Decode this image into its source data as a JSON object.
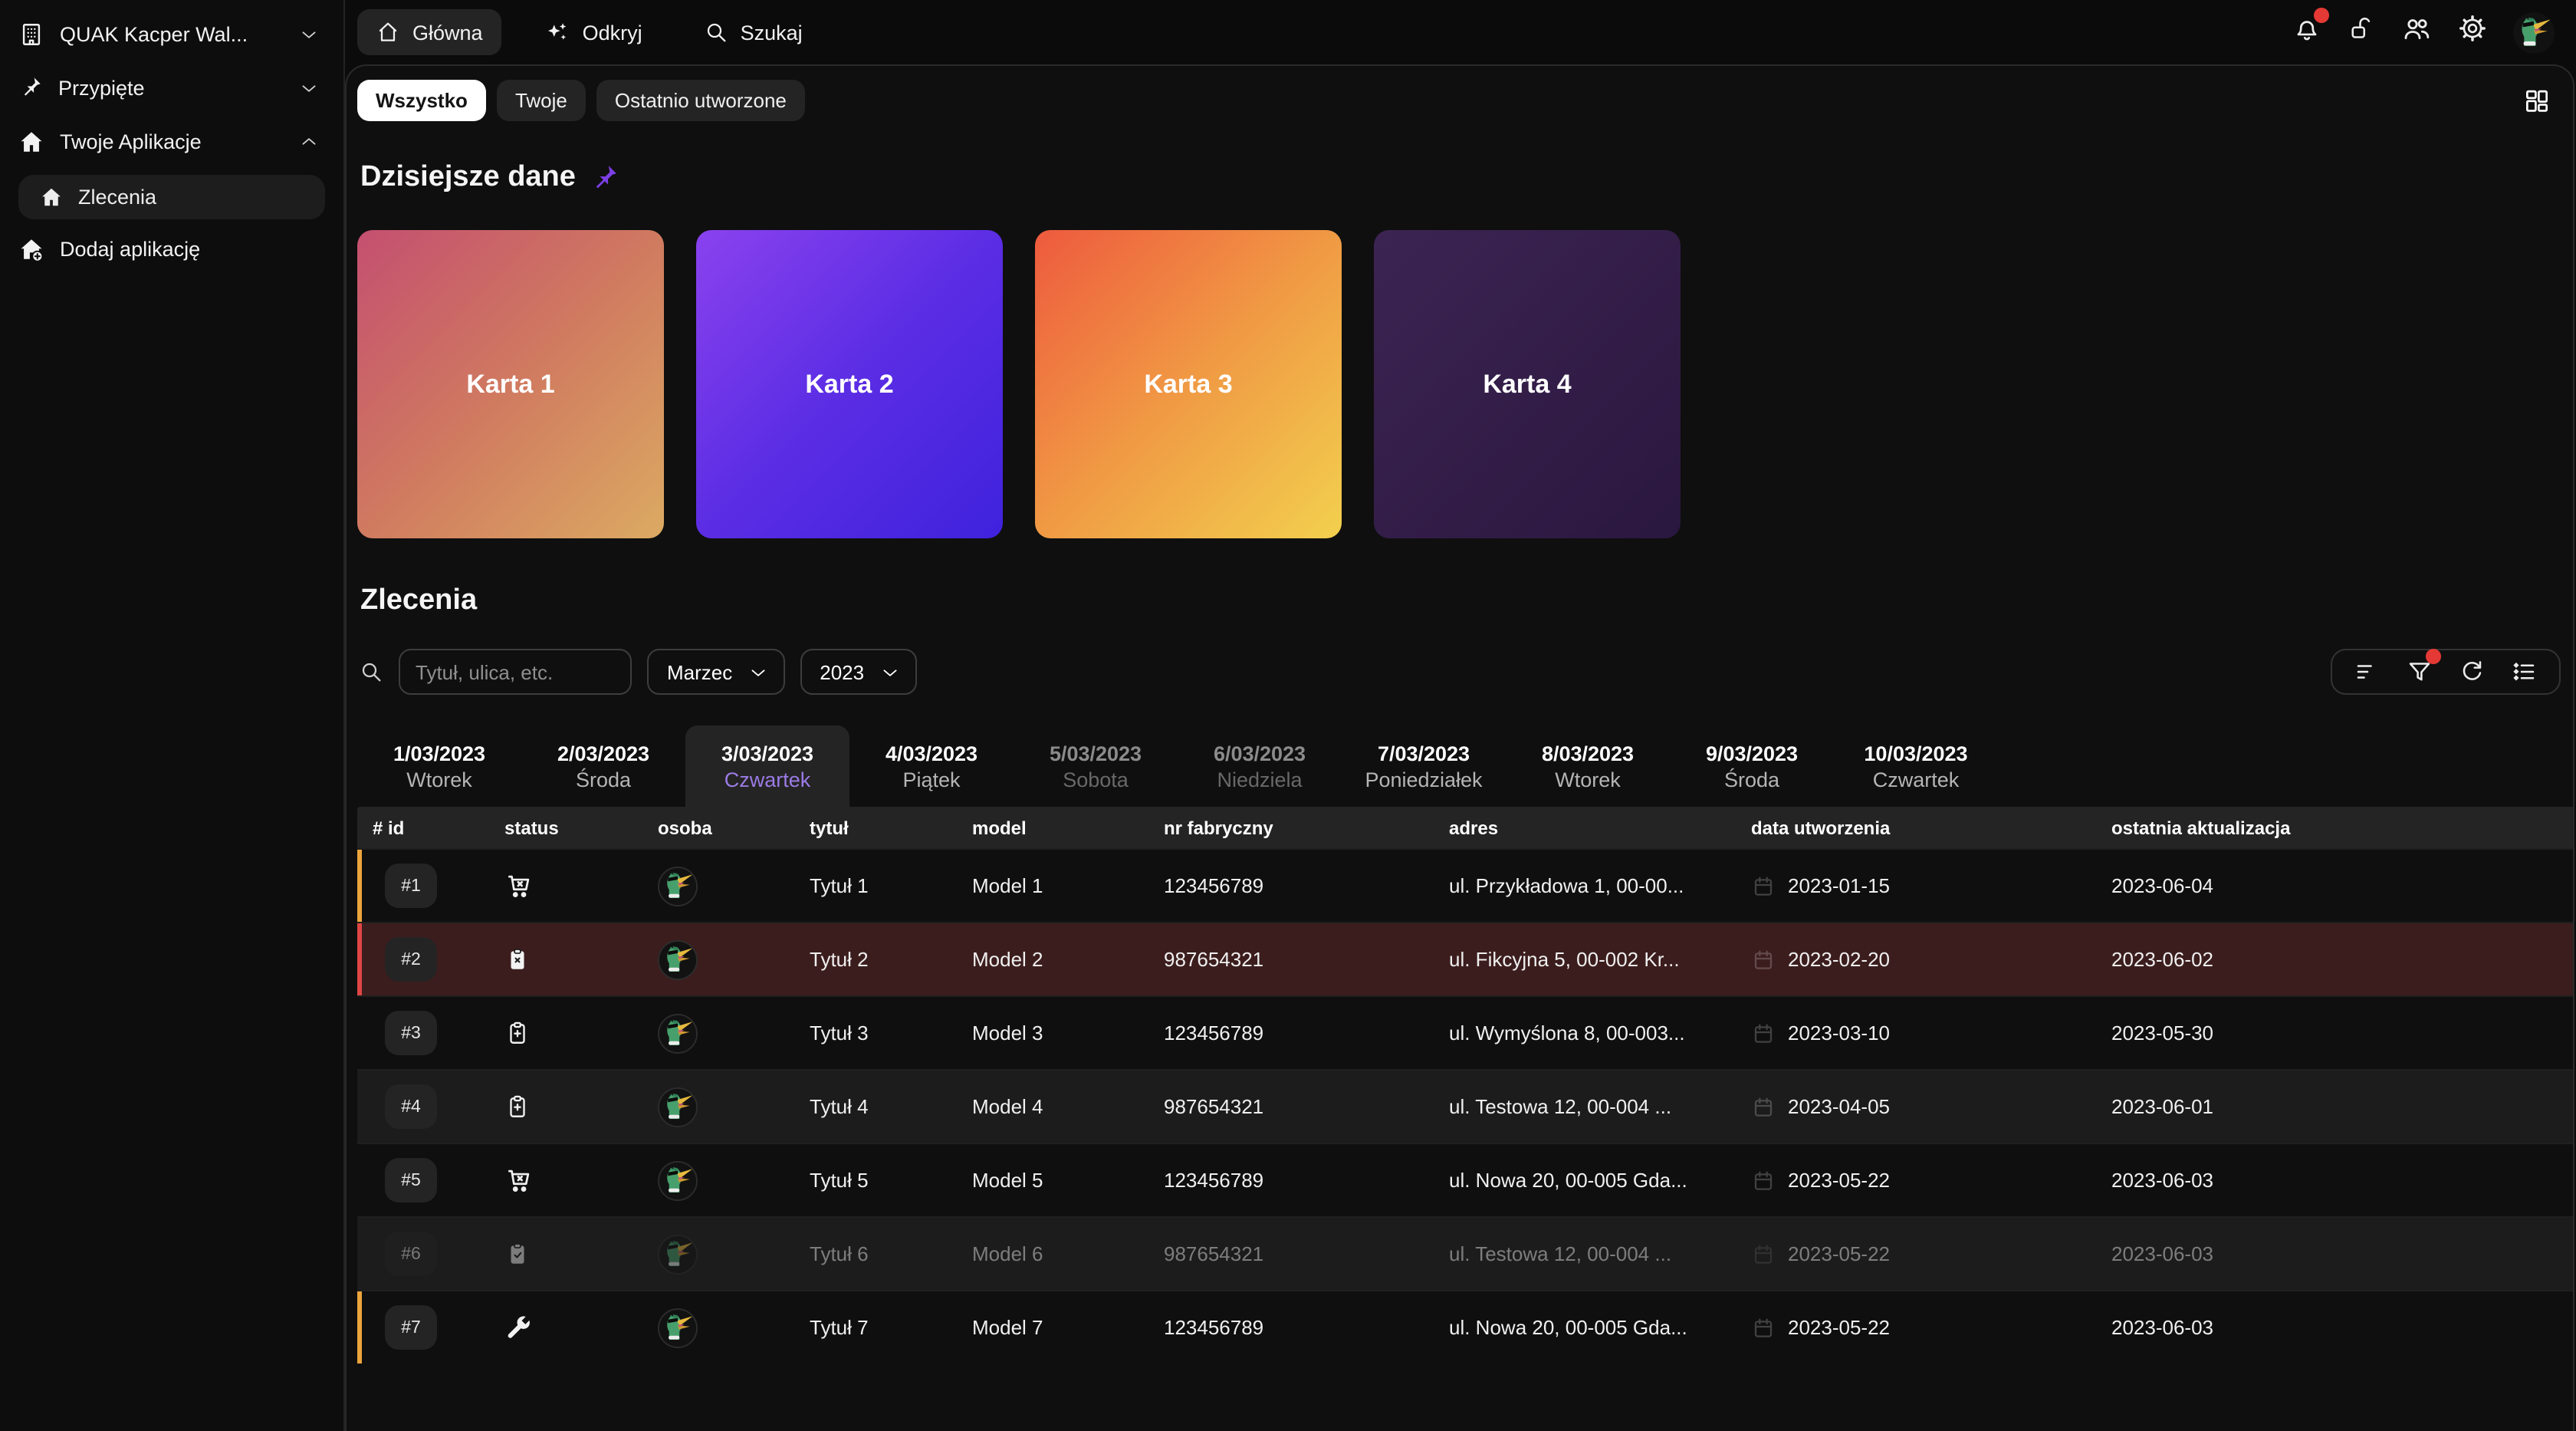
{
  "sidebar": {
    "items": [
      {
        "name": "workspace-switcher",
        "icon": "building-icon",
        "label": "QUAK Kacper Wal...",
        "chevron": "down",
        "type": "section"
      },
      {
        "name": "sidebar-section-pinned",
        "icon": "pin-icon",
        "label": "Przypięte",
        "chevron": "down",
        "type": "section"
      },
      {
        "name": "sidebar-section-your-apps",
        "icon": "house-icon",
        "label": "Twoje Aplikacje",
        "chevron": "up",
        "type": "section"
      },
      {
        "name": "sidebar-item-zlecenia",
        "icon": "home-icon",
        "label": "Zlecenia",
        "type": "active"
      },
      {
        "name": "sidebar-item-add-app",
        "icon": "home-plus-icon",
        "label": "Dodaj aplikację",
        "type": "plain"
      }
    ]
  },
  "topnav": {
    "items": [
      {
        "name": "nav-home",
        "icon": "home-outline-icon",
        "label": "Główna",
        "active": true
      },
      {
        "name": "nav-discover",
        "icon": "sparkles-icon",
        "label": "Odkryj",
        "active": false
      },
      {
        "name": "nav-search",
        "icon": "search-icon",
        "label": "Szukaj",
        "active": false
      }
    ],
    "right_icons": [
      {
        "name": "notifications-button",
        "icon": "bell-icon",
        "badge": true
      },
      {
        "name": "lock-button",
        "icon": "lock-open-icon",
        "badge": false
      },
      {
        "name": "users-button",
        "icon": "users-icon",
        "badge": false
      },
      {
        "name": "settings-button",
        "icon": "gear-icon",
        "badge": false
      }
    ],
    "avatar_icon": "duck-avatar"
  },
  "filters": {
    "chips": [
      {
        "label": "Wszystko",
        "active": true
      },
      {
        "label": "Twoje",
        "active": false
      },
      {
        "label": "Ostatnio utworzone",
        "active": false
      }
    ],
    "layout_button_icon": "grid-layout-icon"
  },
  "today_section": {
    "title": "Dzisiejsze dane",
    "pin_icon": "pin-icon",
    "pin_color": "#7b3fe4",
    "cards": [
      {
        "label": "Karta 1",
        "gradient": [
          "#c44f70",
          "#d07a60",
          "#dcaa62"
        ]
      },
      {
        "label": "Karta 2",
        "gradient": [
          "#8a42ee",
          "#5b2de4",
          "#3f22dd"
        ]
      },
      {
        "label": "Karta 3",
        "gradient": [
          "#ee5a3e",
          "#f09a44",
          "#f2d04e"
        ]
      },
      {
        "label": "Karta 4",
        "gradient": [
          "#3c2452",
          "#2a173f"
        ]
      }
    ]
  },
  "orders_section": {
    "title": "Zlecenia",
    "search_placeholder": "Tytuł, ulica, etc.",
    "month_select": "Marzec",
    "year_select": "2023",
    "toolbar_icons": [
      {
        "name": "sort-button",
        "icon": "sort-icon",
        "badge": false
      },
      {
        "name": "filter-button",
        "icon": "filter-icon",
        "badge": true
      },
      {
        "name": "refresh-button",
        "icon": "refresh-icon",
        "badge": false
      },
      {
        "name": "task-list-button",
        "icon": "task-list-icon",
        "badge": false
      }
    ],
    "day_tabs": [
      {
        "date": "1/03/2023",
        "weekday": "Wtorek",
        "state": "normal"
      },
      {
        "date": "2/03/2023",
        "weekday": "Środa",
        "state": "normal"
      },
      {
        "date": "3/03/2023",
        "weekday": "Czwartek",
        "state": "selected"
      },
      {
        "date": "4/03/2023",
        "weekday": "Piątek",
        "state": "normal"
      },
      {
        "date": "5/03/2023",
        "weekday": "Sobota",
        "state": "disabled"
      },
      {
        "date": "6/03/2023",
        "weekday": "Niedziela",
        "state": "disabled"
      },
      {
        "date": "7/03/2023",
        "weekday": "Poniedziałek",
        "state": "normal"
      },
      {
        "date": "8/03/2023",
        "weekday": "Wtorek",
        "state": "normal"
      },
      {
        "date": "9/03/2023",
        "weekday": "Środa",
        "state": "normal"
      },
      {
        "date": "10/03/2023",
        "weekday": "Czwartek",
        "state": "normal"
      }
    ],
    "table": {
      "columns": [
        "# id",
        "status",
        "osoba",
        "tytuł",
        "model",
        "nr fabryczny",
        "adres",
        "data utworzenia",
        "ostatnia aktualizacja"
      ],
      "calendar_icon": "calendar-icon",
      "accent_colors": {
        "orange": "#eca43c",
        "red": "#e04545"
      },
      "highlight_row_bg": "#3c1d1d",
      "rows": [
        {
          "id": "#1",
          "status_icon": "cart-x-icon",
          "person_icon": "duck-avatar",
          "title": "Tytuł 1",
          "model": "Model 1",
          "serial": "123456789",
          "address": "ul. Przykładowa 1, 00-00...",
          "created": "2023-01-15",
          "updated": "2023-06-04",
          "accent": "orange",
          "alt": false,
          "dimmed": false,
          "highlight": false
        },
        {
          "id": "#2",
          "status_icon": "clipboard-x-icon",
          "person_icon": "duck-avatar",
          "title": "Tytuł 2",
          "model": "Model 2",
          "serial": "987654321",
          "address": "ul. Fikcyjna 5, 00-002 Kr...",
          "created": "2023-02-20",
          "updated": "2023-06-02",
          "accent": "red",
          "alt": false,
          "dimmed": false,
          "highlight": true
        },
        {
          "id": "#3",
          "status_icon": "clipboard-plus-icon",
          "person_icon": "duck-avatar",
          "title": "Tytuł 3",
          "model": "Model 3",
          "serial": "123456789",
          "address": "ul. Wymyślona 8, 00-003...",
          "created": "2023-03-10",
          "updated": "2023-05-30",
          "accent": null,
          "alt": false,
          "dimmed": false,
          "highlight": false
        },
        {
          "id": "#4",
          "status_icon": "clipboard-plus-icon",
          "person_icon": "duck-avatar",
          "title": "Tytuł 4",
          "model": "Model 4",
          "serial": "987654321",
          "address": "ul. Testowa 12, 00-004 ...",
          "created": "2023-04-05",
          "updated": "2023-06-01",
          "accent": null,
          "alt": true,
          "dimmed": false,
          "highlight": false
        },
        {
          "id": "#5",
          "status_icon": "cart-x-icon",
          "person_icon": "duck-avatar",
          "title": "Tytuł 5",
          "model": "Model 5",
          "serial": "123456789",
          "address": "ul. Nowa 20, 00-005 Gda...",
          "created": "2023-05-22",
          "updated": "2023-06-03",
          "accent": null,
          "alt": false,
          "dimmed": false,
          "highlight": false
        },
        {
          "id": "#6",
          "status_icon": "clipboard-check-icon",
          "person_icon": "duck-avatar",
          "title": "Tytuł 6",
          "model": "Model 6",
          "serial": "987654321",
          "address": "ul. Testowa 12, 00-004 ...",
          "created": "2023-05-22",
          "updated": "2023-06-03",
          "accent": null,
          "alt": true,
          "dimmed": true,
          "highlight": false
        },
        {
          "id": "#7",
          "status_icon": "wrench-icon",
          "person_icon": "duck-avatar",
          "title": "Tytuł 7",
          "model": "Model 7",
          "serial": "123456789",
          "address": "ul. Nowa 20, 00-005 Gda...",
          "created": "2023-05-22",
          "updated": "2023-06-03",
          "accent": "orange",
          "alt": false,
          "dimmed": false,
          "highlight": false
        }
      ]
    }
  }
}
